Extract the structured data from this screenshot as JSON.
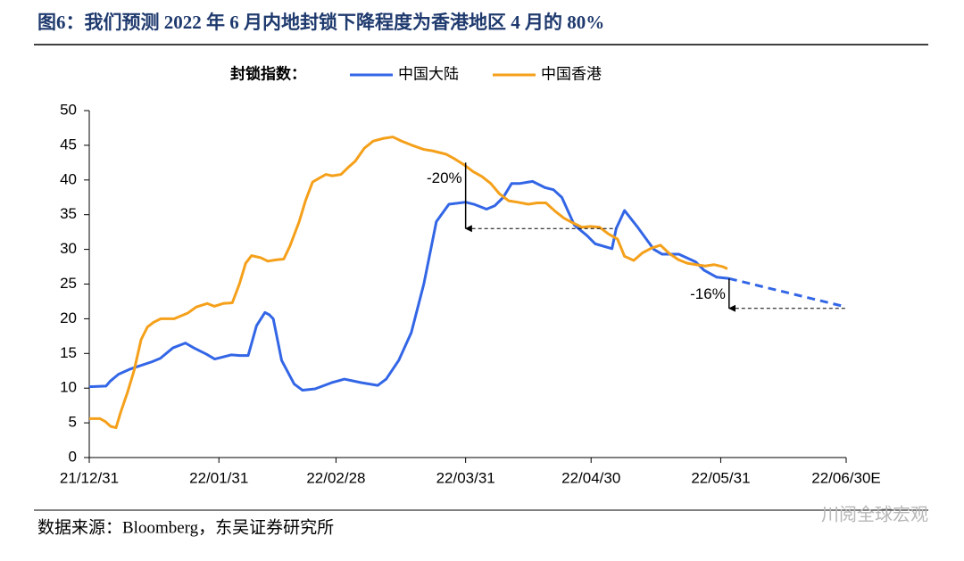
{
  "chart_data": {
    "type": "line",
    "title": "图6：我们预测 2022 年 6 月内地封锁下降程度为香港地区 4 月的 80%",
    "legend_title": "封锁指数：",
    "legend_position": "top",
    "source": "数据来源：Bloomberg，东吴证券研究所",
    "watermark": "川阅全球宏观",
    "xlim": [
      0,
      181
    ],
    "xticks": [
      {
        "value": 0,
        "label": "21/12/31"
      },
      {
        "value": 31,
        "label": "22/01/31"
      },
      {
        "value": 59,
        "label": "22/02/28"
      },
      {
        "value": 90,
        "label": "22/03/31"
      },
      {
        "value": 120,
        "label": "22/04/30"
      },
      {
        "value": 151,
        "label": "22/05/31"
      },
      {
        "value": 181,
        "label": "22/06/30E"
      }
    ],
    "ylim": [
      0,
      50
    ],
    "yticks": [
      0,
      5,
      10,
      15,
      20,
      25,
      30,
      35,
      40,
      45,
      50
    ],
    "series": [
      {
        "name": "中国大陆",
        "color": "#3366e6",
        "dashed_from_x": 153,
        "x": [
          0,
          4,
          5,
          7,
          10,
          12,
          15,
          17,
          20,
          23,
          25,
          28,
          30,
          34,
          36,
          38,
          40,
          42,
          43,
          44,
          46,
          49,
          51,
          54,
          58,
          61,
          65,
          69,
          71,
          74,
          77,
          80,
          83,
          86,
          90,
          92,
          95,
          97,
          99,
          101,
          103,
          106,
          109,
          111,
          113,
          116,
          119,
          121,
          125,
          126,
          128,
          131,
          135,
          137,
          141,
          145,
          147,
          150,
          153,
          181
        ],
        "values": [
          10.2,
          10.3,
          11,
          12,
          12.8,
          13.2,
          13.8,
          14.3,
          15.8,
          16.5,
          15.8,
          14.9,
          14.2,
          14.8,
          14.7,
          14.7,
          19,
          20.9,
          20.6,
          20,
          14,
          10.6,
          9.7,
          9.9,
          10.8,
          11.3,
          10.8,
          10.4,
          11.3,
          14,
          18,
          25,
          34,
          36.5,
          36.8,
          36.5,
          35.8,
          36.3,
          37.5,
          39.5,
          39.5,
          39.8,
          38.9,
          38.6,
          37.5,
          33.5,
          32,
          30.8,
          30.1,
          33,
          35.6,
          33.3,
          30,
          29.3,
          29.3,
          28.2,
          27,
          26,
          25.8,
          21.7
        ]
      },
      {
        "name": "中国香港",
        "color": "#f5a01a",
        "x": [
          0,
          2.6,
          3.8,
          5.1,
          6.4,
          7.5,
          9.2,
          10.7,
          12.4,
          13.9,
          15.4,
          17.1,
          20.3,
          23.5,
          25.6,
          28.2,
          29.9,
          32,
          34.2,
          35.9,
          37.4,
          38.8,
          41,
          42.7,
          44.8,
          46.5,
          48,
          50.2,
          51.7,
          53.4,
          55.1,
          56.6,
          58.1,
          60.2,
          61.9,
          63.6,
          65.8,
          67.9,
          70.4,
          72.6,
          74.7,
          77.2,
          80,
          82.1,
          85.4,
          87.5,
          89.6,
          91.8,
          93.9,
          96,
          98.1,
          100.3,
          102.4,
          105,
          107.1,
          109.2,
          111.4,
          113.5,
          115.7,
          117.8,
          119.9,
          122,
          124.2,
          126.3,
          128,
          130.2,
          132.3,
          134.5,
          136.6,
          138.7,
          140.9,
          143,
          145.1,
          147.3,
          149.4,
          151.5,
          152.6
        ],
        "values": [
          5.6,
          5.6,
          5.2,
          4.5,
          4.3,
          6.5,
          9.5,
          12.5,
          17,
          18.8,
          19.5,
          20,
          20,
          20.8,
          21.7,
          22.2,
          21.8,
          22.2,
          22.3,
          25,
          28,
          29.1,
          28.8,
          28.3,
          28.5,
          28.6,
          30.5,
          34,
          37,
          39.7,
          40.3,
          40.8,
          40.6,
          40.8,
          41.8,
          42.7,
          44.6,
          45.6,
          46,
          46.2,
          45.6,
          45,
          44.4,
          44.2,
          43.7,
          43,
          42.2,
          41.2,
          40.5,
          39.5,
          38,
          37,
          36.8,
          36.5,
          36.7,
          36.7,
          35.5,
          34.5,
          33.8,
          33.2,
          33.3,
          33.2,
          32.2,
          31.5,
          29,
          28.4,
          29.5,
          30.2,
          30.6,
          29.4,
          28.5,
          28,
          27.8,
          27.6,
          27.8,
          27.5,
          27.2
        ]
      }
    ],
    "annotations": [
      {
        "text": "-20%",
        "x": 90,
        "y_from": 42.5,
        "y_to": 33,
        "line_to_x": 126
      },
      {
        "text": "-16%",
        "x": 153,
        "y_from": 25.8,
        "y_to": 21.5,
        "line_to_x": 181
      }
    ]
  }
}
